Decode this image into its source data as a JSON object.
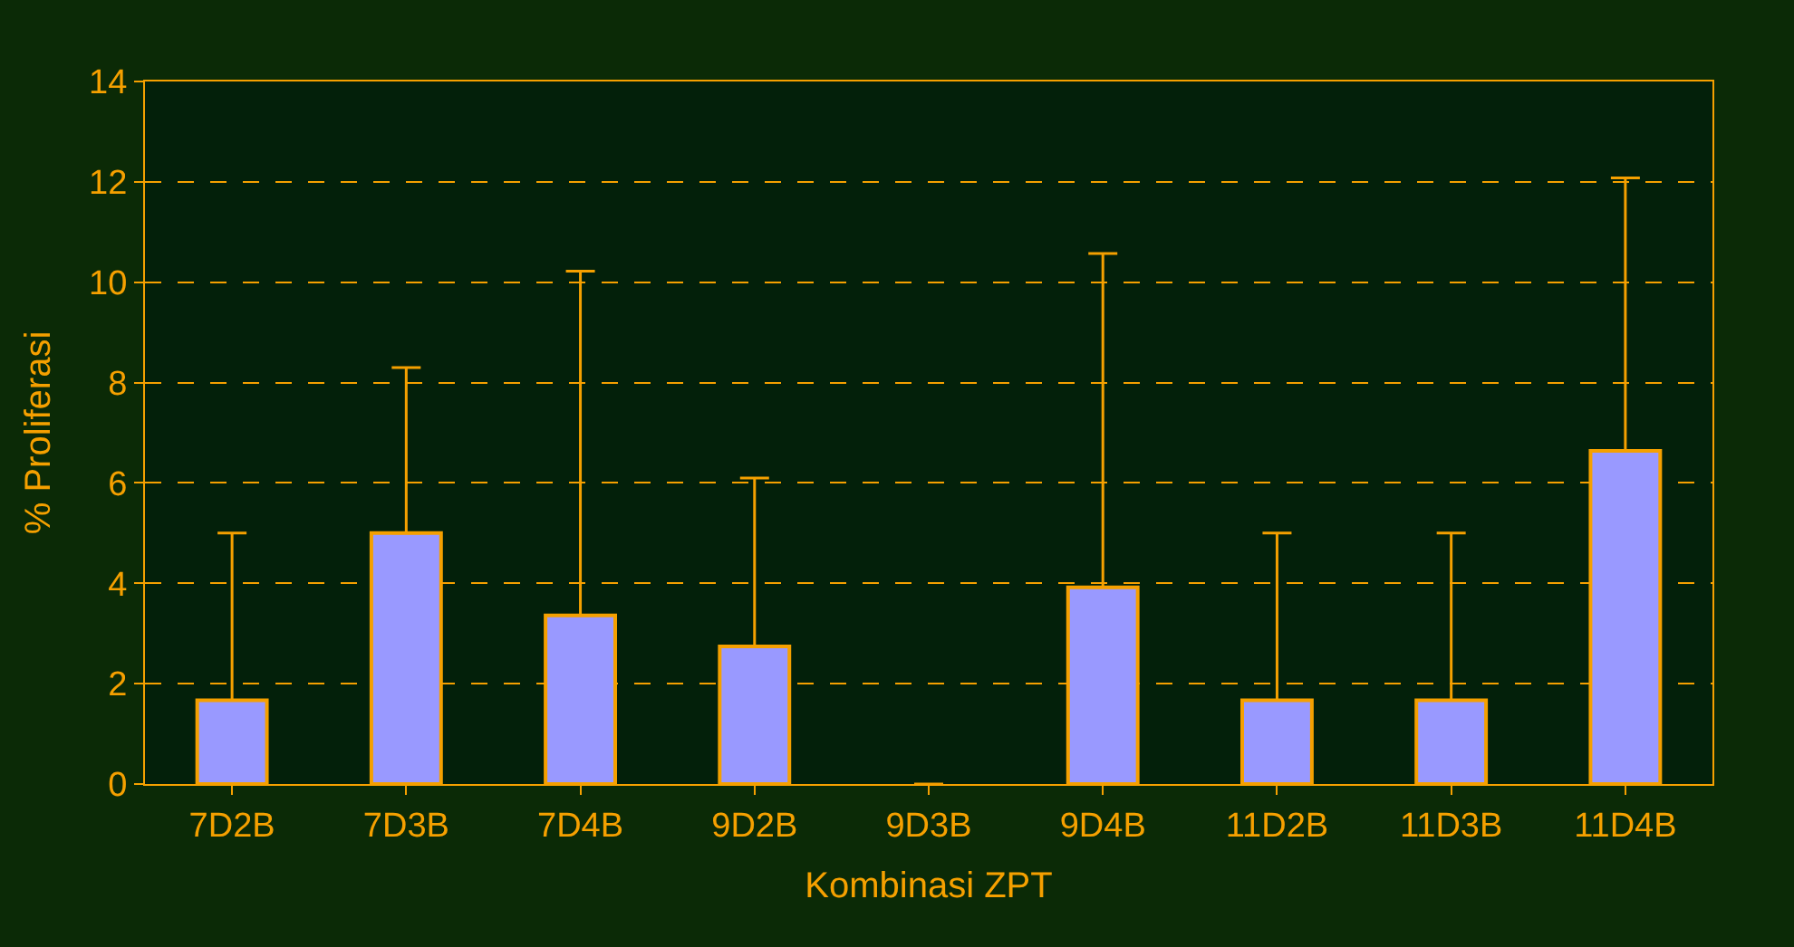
{
  "chart_data": {
    "type": "bar",
    "xlabel": "Kombinasi ZPT",
    "ylabel": "% Proliferasi",
    "categories": [
      "7D2B",
      "7D3B",
      "7D4B",
      "9D2B",
      "9D3B",
      "9D4B",
      "11D2B",
      "11D3B",
      "11D4B"
    ],
    "values": [
      1.67,
      5.0,
      3.36,
      2.74,
      0,
      3.92,
      1.67,
      1.67,
      6.64
    ],
    "errors": [
      [
        1.67,
        5.0
      ],
      [
        5.0,
        8.3
      ],
      [
        3.36,
        10.22
      ],
      [
        2.74,
        6.1
      ],
      null,
      [
        3.92,
        10.57
      ],
      [
        1.67,
        5.0
      ],
      [
        1.67,
        5.0
      ],
      [
        6.64,
        12.08
      ]
    ],
    "color": "#9999ff",
    "ylim": [
      0,
      14
    ],
    "yticks": [
      0,
      2,
      4,
      6,
      8,
      10,
      12,
      14
    ],
    "grid": "y"
  }
}
